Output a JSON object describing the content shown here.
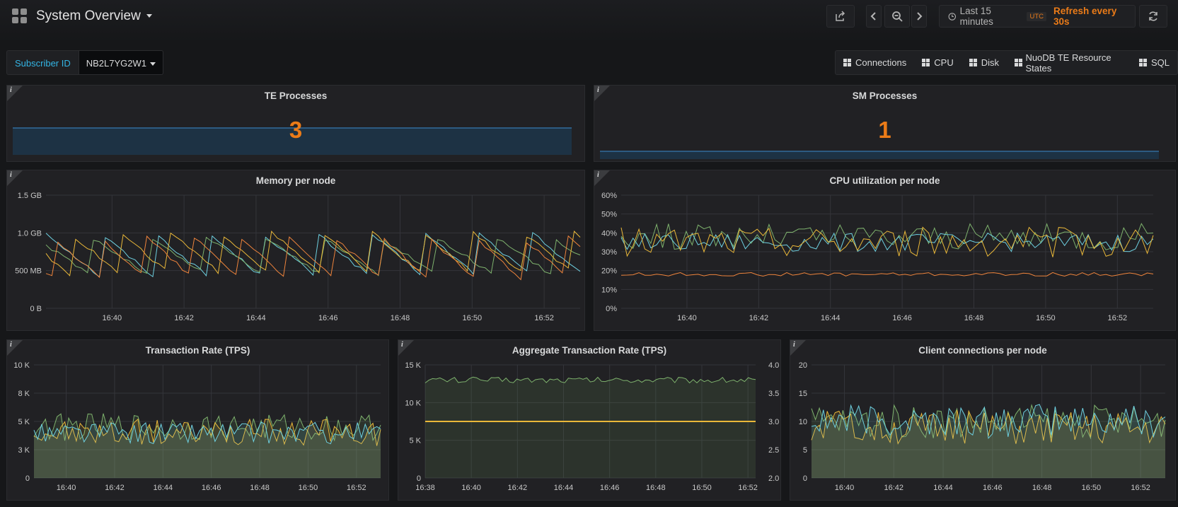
{
  "header": {
    "title": "System Overview",
    "time_range": "Last 15 minutes",
    "timezone": "UTC",
    "refresh": "Refresh every 30s"
  },
  "variables": {
    "label": "Subscriber ID",
    "value": "NB2L7YG2W1"
  },
  "links": [
    "Connections",
    "CPU",
    "Disk",
    "NuoDB TE Resource States",
    "SQL"
  ],
  "colors": {
    "orange": "#eb7b18",
    "green": "#7eb26d",
    "yellow": "#eab839",
    "cyan": "#6ed0e0",
    "salmon": "#ef843c",
    "blue": "#33b5e5"
  },
  "panels": {
    "te": {
      "title": "TE Processes",
      "value": "3"
    },
    "sm": {
      "title": "SM Processes",
      "value": "1"
    },
    "memory": {
      "title": "Memory per node"
    },
    "cpu": {
      "title": "CPU utilization per node"
    },
    "tps": {
      "title": "Transaction Rate (TPS)"
    },
    "agg": {
      "title": "Aggregate Transaction Rate (TPS)"
    },
    "conn": {
      "title": "Client connections per node"
    }
  },
  "chart_data": [
    {
      "id": "memory",
      "type": "line",
      "title": "Memory per node",
      "x": [
        "16:38:10",
        "16:53:00"
      ],
      "xticks": [
        "16:40",
        "16:42",
        "16:44",
        "16:46",
        "16:48",
        "16:50",
        "16:52"
      ],
      "ylim": [
        0,
        1.5
      ],
      "yunit": "GB",
      "yticks": [
        0,
        0.5,
        1.0,
        1.5
      ],
      "yticklabels": [
        "0 B",
        "500 MB",
        "1.0 GB",
        "1.5 GB"
      ],
      "series": [
        {
          "color": "#6ed0e0",
          "pattern": "sawtooth",
          "range": [
            0.42,
            1.0
          ],
          "period": 1.5
        },
        {
          "color": "#7eb26d",
          "pattern": "sawtooth",
          "range": [
            0.45,
            0.95
          ],
          "period": 1.6
        },
        {
          "color": "#eab839",
          "pattern": "sawtooth",
          "range": [
            0.45,
            1.0
          ],
          "period": 1.4
        },
        {
          "color": "#ef843c",
          "pattern": "sawtooth",
          "range": [
            0.4,
            0.95
          ],
          "period": 1.3
        }
      ]
    },
    {
      "id": "cpu",
      "type": "line",
      "title": "CPU utilization per node",
      "x": [
        "16:38:10",
        "16:53:00"
      ],
      "xticks": [
        "16:40",
        "16:42",
        "16:44",
        "16:46",
        "16:48",
        "16:50",
        "16:52"
      ],
      "ylim": [
        0,
        60
      ],
      "yunit": "%",
      "yticks": [
        0,
        10,
        20,
        30,
        40,
        50,
        60
      ],
      "yticklabels": [
        "0%",
        "10%",
        "20%",
        "30%",
        "40%",
        "50%",
        "60%"
      ],
      "series": [
        {
          "color": "#ef843c",
          "mean": 18,
          "noise": 1
        },
        {
          "color": "#7eb26d",
          "mean": 38,
          "noise": 7
        },
        {
          "color": "#6ed0e0",
          "mean": 35,
          "noise": 5
        },
        {
          "color": "#eab839",
          "mean": 35,
          "noise": 8
        }
      ]
    },
    {
      "id": "tps",
      "type": "area",
      "title": "Transaction Rate (TPS)",
      "x": [
        "16:38:40",
        "16:53:00"
      ],
      "xticks": [
        "16:40",
        "16:42",
        "16:44",
        "16:46",
        "16:48",
        "16:50",
        "16:52"
      ],
      "ylim": [
        0,
        10000
      ],
      "yticks": [
        0,
        2500,
        5000,
        7500,
        10000
      ],
      "yticklabels": [
        "0",
        "3 K",
        "5 K",
        "8 K",
        "10 K"
      ],
      "series": [
        {
          "color": "#7eb26d",
          "mean": 4500,
          "noise": 1200
        },
        {
          "color": "#eab839",
          "mean": 4000,
          "noise": 1200
        },
        {
          "color": "#6ed0e0",
          "mean": 4000,
          "noise": 1000
        }
      ]
    },
    {
      "id": "agg",
      "type": "area",
      "title": "Aggregate Transaction Rate (TPS)",
      "x": [
        "16:38:00",
        "16:52:20"
      ],
      "xticks": [
        "16:38",
        "16:40",
        "16:42",
        "16:44",
        "16:46",
        "16:48",
        "16:50",
        "16:52"
      ],
      "ylim": [
        0,
        15000
      ],
      "yticks": [
        0,
        5000,
        10000,
        15000
      ],
      "yticklabels": [
        "0",
        "5 K",
        "10 K",
        "15 K"
      ],
      "y2lim": [
        2.0,
        4.0
      ],
      "y2ticks": [
        2.0,
        2.5,
        3.0,
        3.5,
        4.0
      ],
      "y2ticklabels": [
        "2.0",
        "2.5",
        "3.0",
        "3.5",
        "4.0"
      ],
      "series": [
        {
          "color": "#7eb26d",
          "mean": 13000,
          "noise": 400,
          "axis": "left"
        },
        {
          "color": "#eab839",
          "constant": 3,
          "axis": "right"
        }
      ]
    },
    {
      "id": "conn",
      "type": "area",
      "title": "Client connections per node",
      "x": [
        "16:38:40",
        "16:53:00"
      ],
      "xticks": [
        "16:40",
        "16:42",
        "16:44",
        "16:46",
        "16:48",
        "16:50",
        "16:52"
      ],
      "ylim": [
        0,
        20
      ],
      "yticks": [
        0,
        5,
        10,
        15,
        20
      ],
      "yticklabels": [
        "0",
        "5",
        "10",
        "15",
        "20"
      ],
      "series": [
        {
          "color": "#7eb26d",
          "mean": 10,
          "noise": 3
        },
        {
          "color": "#eab839",
          "mean": 9,
          "noise": 3
        },
        {
          "color": "#6ed0e0",
          "mean": 10,
          "noise": 3
        }
      ]
    }
  ]
}
